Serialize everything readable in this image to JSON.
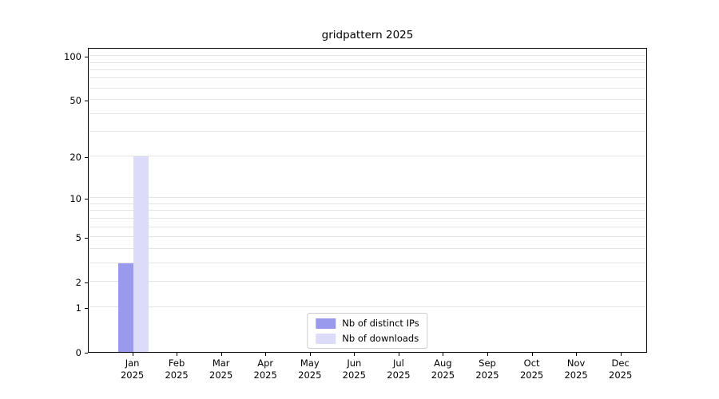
{
  "chart_data": {
    "type": "bar",
    "title": "gridpattern 2025",
    "categories": [
      "Jan",
      "Feb",
      "Mar",
      "Apr",
      "May",
      "Jun",
      "Jul",
      "Aug",
      "Sep",
      "Oct",
      "Nov",
      "Dec"
    ],
    "year_label": "2025",
    "series": [
      {
        "name": "Nb of distinct IPs",
        "color": "#9999ed",
        "values": [
          3,
          0,
          0,
          0,
          0,
          0,
          0,
          0,
          0,
          0,
          0,
          0
        ]
      },
      {
        "name": "Nb of downloads",
        "color": "#dcdcf9",
        "values": [
          20,
          0,
          0,
          0,
          0,
          0,
          0,
          0,
          0,
          0,
          0,
          0
        ]
      }
    ],
    "yticks": [
      0,
      1,
      2,
      5,
      10,
      20,
      50,
      100
    ],
    "minor_gridlines": [
      1,
      2,
      3,
      4,
      5,
      6,
      7,
      8,
      9,
      10,
      20,
      30,
      40,
      50,
      60,
      70,
      80,
      90,
      100
    ],
    "ylim": [
      0,
      115
    ],
    "scale": "log1p",
    "grid": "horizontal",
    "grid_color": "#e4e4e4",
    "axis_color": "#000000",
    "legend_position": "bottom-center"
  }
}
